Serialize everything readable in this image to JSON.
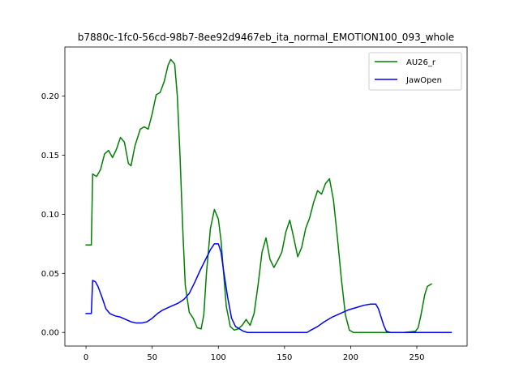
{
  "chart_data": {
    "type": "line",
    "title": "b7880c-1fc0-56cd-98b7-8ee92d9467eb_ita_normal_EMOTION100_093_whole",
    "xlabel": "",
    "ylabel": "",
    "xlim": [
      -16,
      288
    ],
    "ylim": [
      -0.0115,
      0.2415
    ],
    "xticks": [
      0,
      50,
      100,
      150,
      200,
      250
    ],
    "yticks": [
      0.0,
      0.05,
      0.1,
      0.15,
      0.2
    ],
    "ytick_labels": [
      "0.00",
      "0.05",
      "0.10",
      "0.15",
      "0.20"
    ],
    "legend_position": "top-right",
    "grid": false,
    "series": [
      {
        "name": "AU26_r",
        "color": "#008000",
        "points": [
          [
            0,
            0.074
          ],
          [
            4,
            0.074
          ],
          [
            5,
            0.134
          ],
          [
            8,
            0.132
          ],
          [
            11,
            0.138
          ],
          [
            14,
            0.151
          ],
          [
            17,
            0.154
          ],
          [
            20,
            0.148
          ],
          [
            23,
            0.155
          ],
          [
            26,
            0.165
          ],
          [
            29,
            0.161
          ],
          [
            32,
            0.143
          ],
          [
            34,
            0.141
          ],
          [
            37,
            0.158
          ],
          [
            41,
            0.172
          ],
          [
            44,
            0.174
          ],
          [
            47,
            0.172
          ],
          [
            50,
            0.185
          ],
          [
            53,
            0.201
          ],
          [
            56,
            0.203
          ],
          [
            59,
            0.212
          ],
          [
            62,
            0.226
          ],
          [
            64,
            0.231
          ],
          [
            67,
            0.227
          ],
          [
            69,
            0.2
          ],
          [
            71,
            0.15
          ],
          [
            73,
            0.09
          ],
          [
            75,
            0.04
          ],
          [
            78,
            0.017
          ],
          [
            81,
            0.012
          ],
          [
            84,
            0.004
          ],
          [
            87,
            0.003
          ],
          [
            89,
            0.015
          ],
          [
            91,
            0.05
          ],
          [
            94,
            0.088
          ],
          [
            97,
            0.104
          ],
          [
            100,
            0.096
          ],
          [
            102,
            0.078
          ],
          [
            104,
            0.05
          ],
          [
            106,
            0.022
          ],
          [
            109,
            0.005
          ],
          [
            112,
            0.002
          ],
          [
            115,
            0.003
          ],
          [
            118,
            0.006
          ],
          [
            121,
            0.011
          ],
          [
            124,
            0.006
          ],
          [
            127,
            0.016
          ],
          [
            130,
            0.04
          ],
          [
            133,
            0.068
          ],
          [
            136,
            0.08
          ],
          [
            139,
            0.062
          ],
          [
            142,
            0.055
          ],
          [
            145,
            0.061
          ],
          [
            148,
            0.068
          ],
          [
            151,
            0.085
          ],
          [
            154,
            0.095
          ],
          [
            157,
            0.08
          ],
          [
            160,
            0.064
          ],
          [
            163,
            0.072
          ],
          [
            166,
            0.088
          ],
          [
            169,
            0.097
          ],
          [
            172,
            0.11
          ],
          [
            175,
            0.12
          ],
          [
            178,
            0.117
          ],
          [
            181,
            0.126
          ],
          [
            184,
            0.13
          ],
          [
            187,
            0.112
          ],
          [
            190,
            0.08
          ],
          [
            193,
            0.045
          ],
          [
            196,
            0.015
          ],
          [
            199,
            0.002
          ],
          [
            202,
            0.0
          ],
          [
            210,
            0.0
          ],
          [
            220,
            0.0
          ],
          [
            230,
            0.0
          ],
          [
            240,
            0.0
          ],
          [
            249,
            0.001
          ],
          [
            251,
            0.004
          ],
          [
            253,
            0.014
          ],
          [
            256,
            0.032
          ],
          [
            258,
            0.039
          ],
          [
            261,
            0.041
          ]
        ]
      },
      {
        "name": "JawOpen",
        "color": "#0000ff",
        "points": [
          [
            0,
            0.016
          ],
          [
            4,
            0.016
          ],
          [
            5,
            0.044
          ],
          [
            7,
            0.043
          ],
          [
            9,
            0.039
          ],
          [
            12,
            0.03
          ],
          [
            15,
            0.02
          ],
          [
            18,
            0.016
          ],
          [
            22,
            0.014
          ],
          [
            26,
            0.013
          ],
          [
            30,
            0.011
          ],
          [
            34,
            0.009
          ],
          [
            38,
            0.008
          ],
          [
            42,
            0.008
          ],
          [
            46,
            0.009
          ],
          [
            50,
            0.012
          ],
          [
            54,
            0.016
          ],
          [
            58,
            0.019
          ],
          [
            62,
            0.021
          ],
          [
            66,
            0.023
          ],
          [
            70,
            0.025
          ],
          [
            74,
            0.028
          ],
          [
            78,
            0.033
          ],
          [
            82,
            0.042
          ],
          [
            86,
            0.052
          ],
          [
            90,
            0.061
          ],
          [
            94,
            0.07
          ],
          [
            97,
            0.075
          ],
          [
            100,
            0.075
          ],
          [
            102,
            0.068
          ],
          [
            104,
            0.052
          ],
          [
            107,
            0.03
          ],
          [
            110,
            0.012
          ],
          [
            113,
            0.005
          ],
          [
            116,
            0.003
          ],
          [
            119,
            0.001
          ],
          [
            122,
            0.0
          ],
          [
            130,
            0.0
          ],
          [
            140,
            0.0
          ],
          [
            150,
            0.0
          ],
          [
            160,
            0.0
          ],
          [
            167,
            0.0
          ],
          [
            170,
            0.002
          ],
          [
            175,
            0.005
          ],
          [
            180,
            0.009
          ],
          [
            186,
            0.013
          ],
          [
            192,
            0.016
          ],
          [
            198,
            0.019
          ],
          [
            204,
            0.021
          ],
          [
            210,
            0.023
          ],
          [
            215,
            0.024
          ],
          [
            219,
            0.024
          ],
          [
            221,
            0.02
          ],
          [
            223,
            0.013
          ],
          [
            225,
            0.006
          ],
          [
            227,
            0.001
          ],
          [
            230,
            0.0
          ],
          [
            240,
            0.0
          ],
          [
            250,
            0.0
          ],
          [
            260,
            0.0
          ],
          [
            270,
            0.0
          ],
          [
            276,
            0.0
          ]
        ]
      }
    ]
  }
}
